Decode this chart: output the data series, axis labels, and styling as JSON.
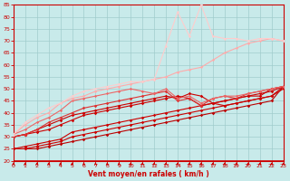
{
  "title": "",
  "xlabel": "Vent moyen/en rafales ( km/h )",
  "xlim": [
    0,
    23
  ],
  "ylim": [
    20,
    85
  ],
  "yticks": [
    20,
    25,
    30,
    35,
    40,
    45,
    50,
    55,
    60,
    65,
    70,
    75,
    80,
    85
  ],
  "xticks": [
    0,
    1,
    2,
    3,
    4,
    5,
    6,
    7,
    8,
    9,
    10,
    11,
    12,
    13,
    14,
    15,
    16,
    17,
    18,
    19,
    20,
    21,
    22,
    23
  ],
  "bg_color": "#c8eaea",
  "grid_color": "#a0cccc",
  "series": [
    {
      "x": [
        0,
        1,
        2,
        3,
        4,
        5,
        6,
        7,
        8,
        9,
        10,
        11,
        12,
        13,
        14,
        15,
        16,
        17,
        18,
        19,
        20,
        21,
        22,
        23
      ],
      "y": [
        25,
        25,
        25,
        26,
        27,
        28,
        29,
        30,
        31,
        32,
        33,
        34,
        35,
        36,
        37,
        38,
        39,
        40,
        41,
        42,
        43,
        44,
        45,
        51
      ],
      "color": "#bb0000",
      "lw": 0.8,
      "marker": "D",
      "ms": 1.8
    },
    {
      "x": [
        0,
        1,
        2,
        3,
        4,
        5,
        6,
        7,
        8,
        9,
        10,
        11,
        12,
        13,
        14,
        15,
        16,
        17,
        18,
        19,
        20,
        21,
        22,
        23
      ],
      "y": [
        25,
        25,
        26,
        27,
        28,
        30,
        31,
        32,
        33,
        34,
        35,
        36,
        37,
        38,
        39,
        40,
        41,
        42,
        43,
        44,
        45,
        46,
        47,
        51
      ],
      "color": "#cc0000",
      "lw": 0.8,
      "marker": "D",
      "ms": 1.8
    },
    {
      "x": [
        0,
        1,
        2,
        3,
        4,
        5,
        6,
        7,
        8,
        9,
        10,
        11,
        12,
        13,
        14,
        15,
        16,
        17,
        18,
        19,
        20,
        21,
        22,
        23
      ],
      "y": [
        25,
        26,
        27,
        28,
        29,
        32,
        33,
        34,
        35,
        36,
        37,
        38,
        39,
        40,
        41,
        42,
        43,
        44,
        45,
        46,
        47,
        47,
        50,
        51
      ],
      "color": "#cc0000",
      "lw": 0.8,
      "marker": "D",
      "ms": 1.8
    },
    {
      "x": [
        0,
        1,
        2,
        3,
        4,
        5,
        6,
        7,
        8,
        9,
        10,
        11,
        12,
        13,
        14,
        15,
        16,
        17,
        18,
        19,
        20,
        21,
        22,
        23
      ],
      "y": [
        30,
        31,
        32,
        33,
        35,
        37,
        39,
        40,
        41,
        42,
        43,
        44,
        45,
        46,
        47,
        46,
        43,
        44,
        45,
        46,
        47,
        48,
        49,
        51
      ],
      "color": "#cc0000",
      "lw": 0.8,
      "marker": "D",
      "ms": 1.8
    },
    {
      "x": [
        0,
        1,
        2,
        3,
        4,
        5,
        6,
        7,
        8,
        9,
        10,
        11,
        12,
        13,
        14,
        15,
        16,
        17,
        18,
        19,
        20,
        21,
        22,
        23
      ],
      "y": [
        30,
        31,
        33,
        35,
        37,
        39,
        40,
        41,
        42,
        43,
        44,
        45,
        46,
        47,
        46,
        48,
        47,
        44,
        43,
        44,
        45,
        46,
        47,
        50
      ],
      "color": "#cc0000",
      "lw": 0.8,
      "marker": "D",
      "ms": 1.8
    },
    {
      "x": [
        0,
        1,
        2,
        3,
        4,
        5,
        6,
        7,
        8,
        9,
        10,
        11,
        12,
        13,
        14,
        15,
        16,
        17,
        18,
        19,
        20,
        21,
        22,
        23
      ],
      "y": [
        30,
        31,
        33,
        36,
        38,
        40,
        42,
        43,
        44,
        45,
        46,
        47,
        48,
        49,
        45,
        46,
        43,
        46,
        47,
        46,
        48,
        49,
        50,
        51
      ],
      "color": "#dd3333",
      "lw": 0.8,
      "marker": "D",
      "ms": 1.8
    },
    {
      "x": [
        0,
        1,
        2,
        3,
        4,
        5,
        6,
        7,
        8,
        9,
        10,
        11,
        12,
        13,
        14,
        15,
        16,
        17,
        18,
        19,
        20,
        21,
        22,
        23
      ],
      "y": [
        31,
        33,
        36,
        38,
        41,
        45,
        46,
        47,
        48,
        49,
        50,
        49,
        48,
        50,
        46,
        47,
        44,
        46,
        47,
        47,
        48,
        49,
        50,
        51
      ],
      "color": "#ee6666",
      "lw": 0.8,
      "marker": "D",
      "ms": 1.6
    },
    {
      "x": [
        0,
        1,
        2,
        3,
        4,
        5,
        6,
        7,
        8,
        9,
        10,
        11,
        12,
        13,
        14,
        15,
        16,
        17,
        18,
        19,
        20,
        21,
        22,
        23
      ],
      "y": [
        31,
        35,
        38,
        40,
        44,
        46,
        47,
        49,
        50,
        51,
        52,
        53,
        54,
        55,
        57,
        58,
        59,
        62,
        65,
        67,
        69,
        70,
        71,
        70
      ],
      "color": "#ffaaaa",
      "lw": 0.8,
      "marker": "D",
      "ms": 1.6
    },
    {
      "x": [
        0,
        1,
        2,
        3,
        4,
        5,
        6,
        7,
        8,
        9,
        10,
        11,
        12,
        13,
        14,
        15,
        16,
        17,
        18,
        19,
        20,
        21,
        22,
        23
      ],
      "y": [
        31,
        36,
        39,
        42,
        44,
        47,
        49,
        50,
        51,
        52,
        53,
        53,
        54,
        68,
        82,
        72,
        85,
        72,
        71,
        71,
        70,
        71,
        71,
        70
      ],
      "color": "#ffcccc",
      "lw": 0.8,
      "marker": "D",
      "ms": 1.6
    }
  ],
  "line_color": "#cc0000",
  "tick_color": "#cc0000",
  "label_color": "#cc0000",
  "arrow_color": "#cc0000"
}
